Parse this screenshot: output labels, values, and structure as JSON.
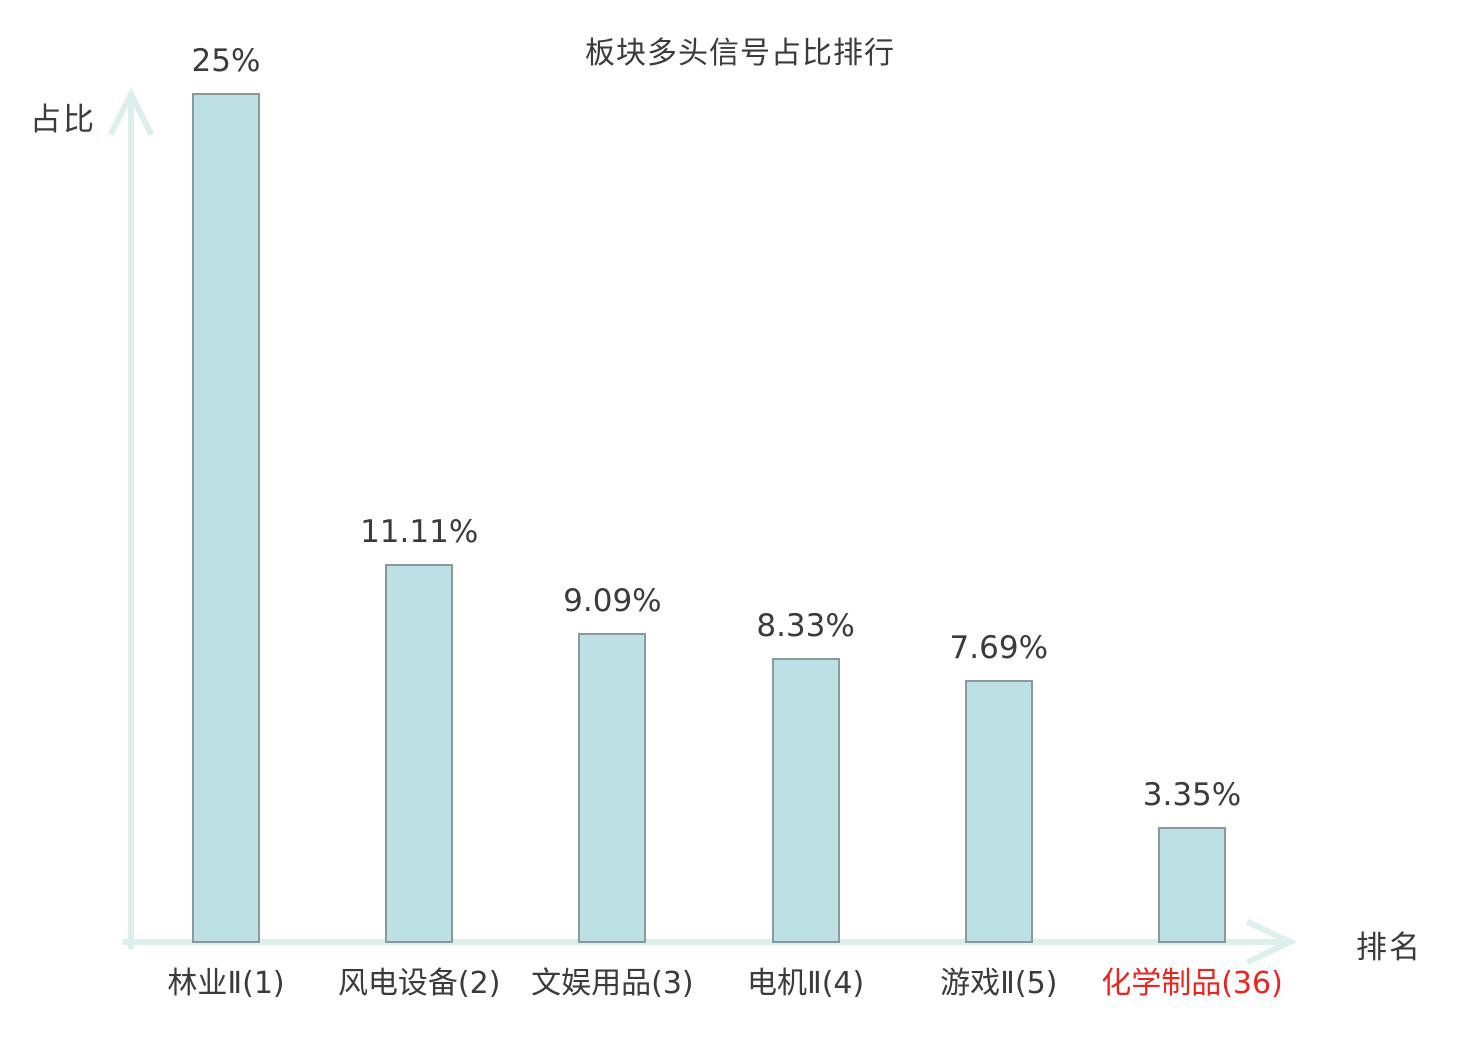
{
  "chart_data": {
    "type": "bar",
    "title": "板块多头信号占比排行",
    "xlabel": "排名",
    "ylabel": "占比",
    "categories": [
      "林业Ⅱ(1)",
      "风电设备(2)",
      "文娱用品(3)",
      "电机Ⅱ(4)",
      "游戏Ⅱ(5)",
      "化学制品(36)"
    ],
    "values": [
      25,
      11.11,
      9.09,
      8.33,
      7.69,
      3.35
    ],
    "value_labels": [
      "25%",
      "11.11%",
      "9.09%",
      "8.33%",
      "7.69%",
      "3.35%"
    ],
    "ranks": [
      1,
      2,
      3,
      4,
      5,
      36
    ],
    "highlighted_category_index": 5,
    "ylim": [
      0,
      25
    ],
    "grid": false,
    "legend": null,
    "axis_style": "arrow",
    "colors": {
      "bar_fill": "#bde0e4",
      "bar_border": "#8a999c",
      "axis": "#ddefec",
      "text": "#3b3b3b",
      "highlight_text": "#e8261f",
      "background": "#ffffff"
    }
  }
}
